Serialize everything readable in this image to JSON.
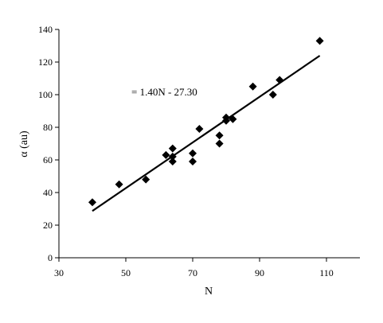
{
  "chart_data": {
    "type": "scatter",
    "xlabel": "N",
    "ylabel": "α (au)",
    "xlim": [
      30,
      120
    ],
    "ylim": [
      0,
      140
    ],
    "x_ticks": [
      30,
      50,
      70,
      90,
      110
    ],
    "y_ticks": [
      0,
      20,
      40,
      60,
      80,
      100,
      120,
      140
    ],
    "grid": false,
    "points": [
      {
        "x": 40,
        "y": 34
      },
      {
        "x": 48,
        "y": 45
      },
      {
        "x": 56,
        "y": 48
      },
      {
        "x": 62,
        "y": 63
      },
      {
        "x": 64,
        "y": 67
      },
      {
        "x": 64,
        "y": 62
      },
      {
        "x": 64,
        "y": 59
      },
      {
        "x": 70,
        "y": 64
      },
      {
        "x": 70,
        "y": 59
      },
      {
        "x": 72,
        "y": 79
      },
      {
        "x": 78,
        "y": 75
      },
      {
        "x": 78,
        "y": 70
      },
      {
        "x": 80,
        "y": 86
      },
      {
        "x": 80,
        "y": 84
      },
      {
        "x": 82,
        "y": 85
      },
      {
        "x": 88,
        "y": 105
      },
      {
        "x": 94,
        "y": 100
      },
      {
        "x": 96,
        "y": 109
      },
      {
        "x": 108,
        "y": 133
      }
    ],
    "trendline": {
      "slope": 1.4,
      "intercept": -27.3,
      "x_range": [
        40,
        108
      ]
    },
    "annotation": "= 1.40N - 27.30"
  }
}
